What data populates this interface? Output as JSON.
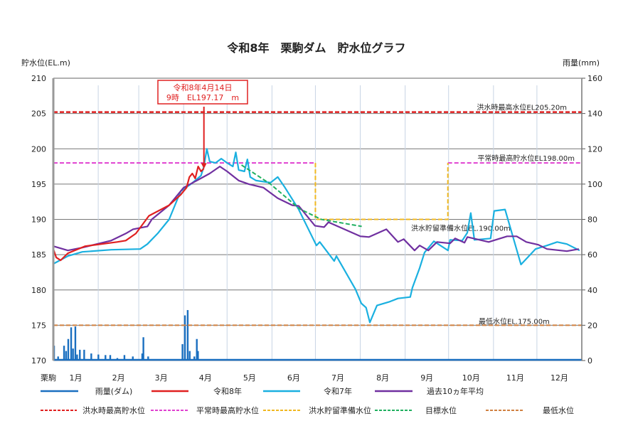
{
  "chart_data": {
    "type": "line",
    "title": "令和8年　栗駒ダム　貯水位グラフ",
    "y_left_label": "貯水位(EL.m)",
    "y_right_label": "雨量(mm)",
    "x_origin_label": "栗駒",
    "x_ticks": [
      "1月",
      "2月",
      "3月",
      "4月",
      "5月",
      "6月",
      "7月",
      "8月",
      "9月",
      "10月",
      "11月",
      "12月"
    ],
    "ylim_left": [
      170,
      210
    ],
    "yticks_left": [
      170,
      175,
      180,
      185,
      190,
      195,
      200,
      205,
      210
    ],
    "ylim_right": [
      0,
      160
    ],
    "yticks_right": [
      0,
      20,
      40,
      60,
      80,
      100,
      120,
      140,
      160
    ],
    "xlim_days": [
      0,
      365
    ],
    "grid": true,
    "annotation": {
      "line1": "令和8年4月14日",
      "line2": "9時　EL197.17　m",
      "day": 104,
      "value": 197.17,
      "color": "#e02020"
    },
    "reference_lines": [
      {
        "name": "洪水時最高貯水位",
        "label": "洪水時最高水位EL205.20m",
        "value": 205.2,
        "color": "#e02020"
      },
      {
        "name": "平常時最高貯水位",
        "label": "平常時最高貯水位EL198.00m",
        "value": 198.0,
        "color": "#e040d0"
      },
      {
        "name": "洪水貯留準備水位",
        "label": "洪水貯留準備水位EL.190.00m",
        "value": 190.0,
        "color": "#f0b820"
      },
      {
        "name": "最低水位",
        "label": "最低水位EL.175.00m",
        "value": 175.0,
        "color": "#d08040"
      }
    ],
    "normal_high_periods": [
      [
        0,
        181
      ],
      [
        272.5,
        365
      ]
    ],
    "flood_prep_period": [
      181,
      272.5
    ],
    "rainfall": {
      "name": "雨量(ダム)",
      "color": "#1a6fc0",
      "points": [
        [
          0.5,
          8.4
        ],
        [
          3.3,
          2.3
        ],
        [
          7.4,
          8.4
        ],
        [
          8.8,
          5.4
        ],
        [
          10.3,
          12.2
        ],
        [
          12.3,
          18.8
        ],
        [
          13.6,
          6.8
        ],
        [
          15.2,
          19.3
        ],
        [
          16.4,
          3.4
        ],
        [
          18.3,
          6.1
        ],
        [
          21.3,
          6.1
        ],
        [
          26.2,
          4
        ],
        [
          31.1,
          3.4
        ],
        [
          36,
          3.1
        ],
        [
          39.3,
          3.1
        ],
        [
          44.2,
          1.4
        ],
        [
          49.1,
          3.1
        ],
        [
          54.9,
          2.3
        ],
        [
          61.4,
          4
        ],
        [
          62.2,
          13.2
        ],
        [
          65.5,
          2.3
        ],
        [
          89.2,
          9.3
        ],
        [
          90.9,
          25.6
        ],
        [
          92.8,
          28.6
        ],
        [
          94.2,
          5.4
        ],
        [
          97.4,
          2.3
        ],
        [
          99.1,
          12.2
        ],
        [
          99.9,
          5.4
        ]
      ]
    },
    "series": [
      {
        "name": "令和8年",
        "color": "#e02020",
        "points": [
          [
            0,
            185.8
          ],
          [
            2,
            184.6
          ],
          [
            5,
            184.2
          ],
          [
            10,
            185.2
          ],
          [
            22,
            186.2
          ],
          [
            44,
            186.8
          ],
          [
            50,
            187
          ],
          [
            57,
            188
          ],
          [
            66,
            190.5
          ],
          [
            80,
            192
          ],
          [
            88,
            193.5
          ],
          [
            92,
            194.5
          ],
          [
            94,
            196
          ],
          [
            96,
            196.5
          ],
          [
            98,
            195.8
          ],
          [
            100,
            197.5
          ],
          [
            102,
            196.8
          ],
          [
            104,
            197.2
          ]
        ]
      },
      {
        "name": "令和7年",
        "color": "#1ab0e0",
        "points": [
          [
            0,
            183.7
          ],
          [
            10,
            184.8
          ],
          [
            20,
            185.4
          ],
          [
            40,
            185.7
          ],
          [
            60,
            185.8
          ],
          [
            65,
            186.5
          ],
          [
            72,
            188
          ],
          [
            80,
            190
          ],
          [
            88,
            194
          ],
          [
            95,
            195
          ],
          [
            102,
            196.2
          ],
          [
            104,
            197.5
          ],
          [
            106,
            200
          ],
          [
            108,
            198.2
          ],
          [
            112,
            198
          ],
          [
            116,
            198.6
          ],
          [
            120,
            198
          ],
          [
            124,
            197.5
          ],
          [
            126,
            199.5
          ],
          [
            128,
            197
          ],
          [
            132,
            196.8
          ],
          [
            134,
            198.5
          ],
          [
            136,
            196
          ],
          [
            140,
            195.5
          ],
          [
            150,
            195.2
          ],
          [
            155,
            196
          ],
          [
            160,
            194.5
          ],
          [
            169.5,
            191.4
          ],
          [
            181.7,
            186.3
          ],
          [
            184,
            186.8
          ],
          [
            194,
            184.1
          ],
          [
            195.5,
            184.8
          ],
          [
            208.7,
            180.1
          ],
          [
            212.7,
            178.1
          ],
          [
            216,
            177.5
          ],
          [
            218.6,
            175.4
          ],
          [
            223.5,
            177.8
          ],
          [
            231.8,
            178.3
          ],
          [
            238,
            178.8
          ],
          [
            246.5,
            179
          ],
          [
            248,
            180.3
          ],
          [
            253,
            183.1
          ],
          [
            256.4,
            185.3
          ],
          [
            262.8,
            186.9
          ],
          [
            272.6,
            185.6
          ],
          [
            274,
            187.1
          ],
          [
            282.4,
            187
          ],
          [
            285.9,
            188.1
          ],
          [
            288.3,
            190.9
          ],
          [
            290.8,
            187.1
          ],
          [
            302,
            187.3
          ],
          [
            304.5,
            191.2
          ],
          [
            312,
            191.4
          ],
          [
            323,
            183.6
          ],
          [
            333,
            185.8
          ],
          [
            341,
            186.3
          ],
          [
            348,
            186.8
          ],
          [
            354.7,
            186.5
          ],
          [
            363.5,
            185.6
          ]
        ]
      },
      {
        "name": "過去10ヵ年平均",
        "color": "#7030a0",
        "points": [
          [
            0,
            186.2
          ],
          [
            10,
            185.6
          ],
          [
            20,
            186
          ],
          [
            30,
            186.5
          ],
          [
            40,
            187
          ],
          [
            50,
            188
          ],
          [
            55,
            188.6
          ],
          [
            65,
            189
          ],
          [
            68,
            190
          ],
          [
            80,
            192
          ],
          [
            90,
            194.5
          ],
          [
            100,
            195.6
          ],
          [
            108,
            196.5
          ],
          [
            115,
            197.5
          ],
          [
            120,
            196.8
          ],
          [
            128,
            195.5
          ],
          [
            135,
            195
          ],
          [
            145,
            194.5
          ],
          [
            155,
            193
          ],
          [
            165,
            192
          ],
          [
            169.5,
            191.9
          ],
          [
            180.7,
            189.1
          ],
          [
            187,
            188.9
          ],
          [
            190,
            189.6
          ],
          [
            212,
            187.6
          ],
          [
            218,
            187.5
          ],
          [
            230,
            188.6
          ],
          [
            238,
            186.8
          ],
          [
            242,
            187.2
          ],
          [
            249.5,
            185.6
          ],
          [
            253,
            186.3
          ],
          [
            259,
            185.6
          ],
          [
            265,
            186.8
          ],
          [
            274,
            186.6
          ],
          [
            277.5,
            187.3
          ],
          [
            284,
            186.7
          ],
          [
            286,
            187.5
          ],
          [
            300.7,
            186.8
          ],
          [
            313.4,
            187.6
          ],
          [
            320,
            187.6
          ],
          [
            326.7,
            186.8
          ],
          [
            335,
            186.4
          ],
          [
            341,
            185.8
          ],
          [
            354.7,
            185.5
          ],
          [
            363,
            185.8
          ]
        ]
      },
      {
        "name": "目標水位",
        "color": "#20b060",
        "dashed": true,
        "points": [
          [
            130,
            197.7
          ],
          [
            150,
            195
          ],
          [
            170,
            191.5
          ],
          [
            185,
            190
          ],
          [
            213,
            189
          ]
        ]
      }
    ],
    "legend": {
      "row1": [
        {
          "label": "雨量(ダム)",
          "color": "#1a6fc0",
          "dashed": false
        },
        {
          "label": "令和8年",
          "color": "#e02020",
          "dashed": false
        },
        {
          "label": "令和7年",
          "color": "#1ab0e0",
          "dashed": false
        },
        {
          "label": "過去10ヵ年平均",
          "color": "#7030a0",
          "dashed": false
        }
      ],
      "row2": [
        {
          "label": "洪水時最高貯水位",
          "color": "#e02020",
          "dashed": true
        },
        {
          "label": "平常時最高貯水位",
          "color": "#e040d0",
          "dashed": true
        },
        {
          "label": "洪水貯留準備水位",
          "color": "#f0b820",
          "dashed": true
        },
        {
          "label": "目標水位",
          "color": "#20b060",
          "dashed": true
        },
        {
          "label": "最低水位",
          "color": "#d08040",
          "dashed": true
        }
      ]
    }
  }
}
